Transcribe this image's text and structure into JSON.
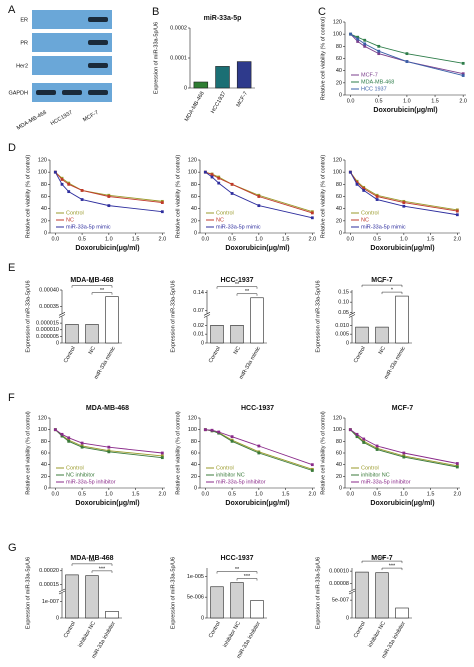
{
  "blot": {
    "panel": "A",
    "rows": [
      "ER",
      "PR",
      "Her2",
      "GAPDH"
    ],
    "lanes": [
      "MDA-MB-468",
      "HCC1937",
      "MCF-7"
    ]
  },
  "chart_data": [
    {
      "panel": "B",
      "type": "bar",
      "title": "miR-33a-5p",
      "ylabel": "Expression of miR-33a-5p/U6",
      "categories": [
        "MDA-MB-468",
        "HCC1937",
        "MCF-7"
      ],
      "values": [
        2e-05,
        7.2e-05,
        8.8e-05
      ],
      "colors": [
        "#2e7d32",
        "#1b6f74",
        "#2e3a8c"
      ],
      "ylim": [
        0,
        0.0002
      ],
      "yticks": [
        0,
        0.0001,
        0.0002
      ]
    },
    {
      "panel": "C",
      "type": "line",
      "xlabel": "Doxorubicin(μg/ml)",
      "ylabel": "Relative cell viability (% of control)",
      "x": [
        0,
        0.125,
        0.25,
        0.5,
        1,
        2
      ],
      "xlim": [
        -0.1,
        2.05
      ],
      "xticks": [
        {
          "value": 0,
          "label": "0.0"
        },
        0.5,
        {
          "value": 1,
          "label": "1.0"
        },
        1.5,
        {
          "value": 2,
          "label": "2.0"
        }
      ],
      "ylim": [
        0,
        120
      ],
      "yticks": [
        0,
        20,
        40,
        60,
        80,
        100,
        120
      ],
      "series": [
        {
          "name": "MCF-7",
          "color": "#7b3f8c",
          "values": [
            100,
            88,
            80,
            68,
            55,
            35
          ]
        },
        {
          "name": "MDA-MB-468",
          "color": "#2e7d4a",
          "values": [
            100,
            95,
            90,
            80,
            68,
            52
          ]
        },
        {
          "name": "HCC 1937",
          "color": "#3a5fa8",
          "values": [
            100,
            92,
            84,
            72,
            55,
            32
          ]
        }
      ]
    },
    {
      "panel": "D",
      "type": "line",
      "xlabel": "Doxorubicin(μg/ml)",
      "ylabel": "Relative cell viability (% of control)",
      "x": [
        0,
        0.125,
        0.25,
        0.5,
        1,
        2
      ],
      "xlim": [
        -0.1,
        2.05
      ],
      "xticks": [
        {
          "value": 0,
          "label": "0.0"
        },
        0.5,
        {
          "value": 1,
          "label": "1.0"
        },
        1.5,
        {
          "value": 2,
          "label": "2.0"
        }
      ],
      "ylim": [
        0,
        120
      ],
      "yticks": [
        0,
        20,
        40,
        60,
        80,
        100,
        120
      ],
      "series": [
        {
          "name": "Control",
          "color": "#9a9a2a",
          "values": [
            100,
            90,
            82,
            70,
            62,
            52
          ]
        },
        {
          "name": "NC",
          "color": "#c0392b",
          "values": [
            100,
            88,
            80,
            70,
            60,
            50
          ]
        },
        {
          "name": "miR-33a-5p mimic",
          "color": "#2e2e9e",
          "values": [
            100,
            80,
            68,
            55,
            45,
            35
          ]
        }
      ]
    },
    {
      "type": "line",
      "xlabel": "Doxorubicin(μg/ml)",
      "ylabel": "Relative cell viability (% of control)",
      "x": [
        0,
        0.125,
        0.25,
        0.5,
        1,
        2
      ],
      "xlim": [
        -0.1,
        2.05
      ],
      "xticks": [
        {
          "value": 0,
          "label": "0.0"
        },
        0.5,
        {
          "value": 1,
          "label": "1.0"
        },
        1.5,
        {
          "value": 2,
          "label": "2.0"
        }
      ],
      "ylim": [
        0,
        120
      ],
      "yticks": [
        0,
        20,
        40,
        60,
        80,
        100,
        120
      ],
      "series": [
        {
          "name": "Control",
          "color": "#9a9a2a",
          "values": [
            100,
            97,
            92,
            80,
            62,
            35
          ]
        },
        {
          "name": "NC",
          "color": "#c0392b",
          "values": [
            100,
            96,
            90,
            80,
            60,
            33
          ]
        },
        {
          "name": "miR-33a-5p mimic",
          "color": "#2e2e9e",
          "values": [
            100,
            92,
            82,
            65,
            45,
            25
          ]
        }
      ]
    },
    {
      "type": "line",
      "xlabel": "Doxorubicin(μg/ml)",
      "ylabel": "Relative cell viability (% of control)",
      "x": [
        0,
        0.125,
        0.25,
        0.5,
        1,
        2
      ],
      "xlim": [
        -0.1,
        2.05
      ],
      "xticks": [
        {
          "value": 0,
          "label": "0.0"
        },
        0.5,
        {
          "value": 1,
          "label": "1.0"
        },
        1.5,
        {
          "value": 2,
          "label": "2.0"
        }
      ],
      "ylim": [
        0,
        120
      ],
      "yticks": [
        0,
        20,
        40,
        60,
        80,
        100,
        120
      ],
      "series": [
        {
          "name": "Control",
          "color": "#9a9a2a",
          "values": [
            100,
            85,
            75,
            62,
            52,
            38
          ]
        },
        {
          "name": "NC",
          "color": "#c0392b",
          "values": [
            100,
            83,
            73,
            60,
            50,
            36
          ]
        },
        {
          "name": "miR-33a-5p mimic",
          "color": "#2e2e9e",
          "values": [
            100,
            80,
            70,
            55,
            44,
            30
          ]
        }
      ]
    },
    {
      "panel": "E",
      "type": "bar",
      "title": "MDA-MB-468",
      "ylabel": "Expression of miR-33a-5p/U6",
      "categories": [
        "Control",
        "NC",
        "miR-33a mimic"
      ],
      "values": [
        1.4e-05,
        1.4e-05,
        0.00038
      ],
      "colors": [
        "#d0d0d0",
        "#d0d0d0",
        "#ffffff"
      ],
      "ylim": [
        0,
        0.0004
      ],
      "ybreak": [
        2e-05,
        0.00033
      ],
      "yticks": [
        0,
        5e-06,
        {
          "value": 1e-05,
          "label": "0.000010"
        },
        1.5e-05,
        0.00035,
        {
          "value": 0.0004,
          "label": "0.00040"
        }
      ],
      "significance": [
        "**",
        "**"
      ]
    },
    {
      "type": "bar",
      "title": "HCC-1937",
      "ylabel": "Expression of miR-33a-5p/U6",
      "categories": [
        "Control",
        "NC",
        "miR-33a mimic"
      ],
      "values": [
        0.02,
        0.02,
        0.12
      ],
      "colors": [
        "#d0d0d0",
        "#d0d0d0",
        "#ffffff"
      ],
      "ylim": [
        0,
        0.15
      ],
      "ybreak": [
        0.03,
        0.06
      ],
      "yticks": [
        0,
        0.01,
        0.02,
        0.07,
        0.14
      ],
      "significance": [
        "**",
        "**"
      ]
    },
    {
      "type": "bar",
      "title": "MCF-7",
      "ylabel": "Expression of miR-33a-5p/U6",
      "categories": [
        "Control",
        "NC",
        "miR-33a mimic"
      ],
      "values": [
        0.009,
        0.009,
        0.13
      ],
      "colors": [
        "#d0d0d0",
        "#d0d0d0",
        "#ffffff"
      ],
      "ylim": [
        0,
        0.16
      ],
      "ybreak": [
        0.015,
        0.045
      ],
      "yticks": [
        0,
        0.005,
        {
          "value": 0.01,
          "label": "0.010"
        },
        0.05,
        {
          "value": 0.1,
          "label": "0.10"
        },
        0.15
      ],
      "significance": [
        "*",
        "*"
      ]
    },
    {
      "panel": "F",
      "type": "line",
      "title": "MDA-MB-468",
      "xlabel": "Doxorubicin(μg/ml)",
      "ylabel": "Relative cell viability (% of control)",
      "x": [
        0,
        0.125,
        0.25,
        0.5,
        1,
        2
      ],
      "xlim": [
        -0.1,
        2.05
      ],
      "xticks": [
        {
          "value": 0,
          "label": "0.0"
        },
        0.5,
        {
          "value": 1,
          "label": "1.0"
        },
        1.5,
        {
          "value": 2,
          "label": "2.0"
        }
      ],
      "ylim": [
        0,
        120
      ],
      "yticks": [
        0,
        20,
        40,
        60,
        80,
        100,
        120
      ],
      "series": [
        {
          "name": "Control",
          "color": "#9a9a2a",
          "values": [
            100,
            90,
            82,
            72,
            64,
            55
          ]
        },
        {
          "name": "NC inhibitor",
          "color": "#3a7a3a",
          "values": [
            100,
            89,
            80,
            70,
            62,
            52
          ]
        },
        {
          "name": "miR-33a-5p inhibitor",
          "color": "#8a2a8a",
          "values": [
            100,
            92,
            86,
            77,
            70,
            60
          ]
        }
      ]
    },
    {
      "type": "line",
      "title": "HCC-1937",
      "xlabel": "Doxorubicin(μg/ml)",
      "ylabel": "Relative cell viability (% of control)",
      "x": [
        0,
        0.125,
        0.25,
        0.5,
        1,
        2
      ],
      "xlim": [
        -0.1,
        2.05
      ],
      "xticks": [
        {
          "value": 0,
          "label": "0.0"
        },
        0.5,
        {
          "value": 1,
          "label": "1.0"
        },
        1.5,
        {
          "value": 2,
          "label": "2.0"
        }
      ],
      "ylim": [
        0,
        120
      ],
      "yticks": [
        0,
        20,
        40,
        60,
        80,
        100,
        120
      ],
      "series": [
        {
          "name": "Control",
          "color": "#9a9a2a",
          "values": [
            100,
            98,
            95,
            82,
            62,
            32
          ]
        },
        {
          "name": "inhibitor NC",
          "color": "#3a7a3a",
          "values": [
            100,
            98,
            94,
            80,
            60,
            30
          ]
        },
        {
          "name": "miR-33a-5p inhibitor",
          "color": "#8a2a8a",
          "values": [
            100,
            99,
            96,
            88,
            72,
            40
          ]
        }
      ]
    },
    {
      "type": "line",
      "title": "MCF-7",
      "xlabel": "Doxorubicin(μg/ml)",
      "ylabel": "Relative cell viability (% of control)",
      "x": [
        0,
        0.125,
        0.25,
        0.5,
        1,
        2
      ],
      "xlim": [
        -0.1,
        2.05
      ],
      "xticks": [
        {
          "value": 0,
          "label": "0.0"
        },
        0.5,
        {
          "value": 1,
          "label": "1.0"
        },
        1.5,
        {
          "value": 2,
          "label": "2.0"
        }
      ],
      "ylim": [
        0,
        120
      ],
      "yticks": [
        0,
        20,
        40,
        60,
        80,
        100,
        120
      ],
      "series": [
        {
          "name": "Control",
          "color": "#9a9a2a",
          "values": [
            100,
            90,
            80,
            68,
            55,
            38
          ]
        },
        {
          "name": "inhibitor NC",
          "color": "#3a7a3a",
          "values": [
            100,
            88,
            78,
            66,
            53,
            36
          ]
        },
        {
          "name": "miR-33a-5p inhibitor",
          "color": "#8a2a8a",
          "values": [
            100,
            92,
            84,
            72,
            60,
            42
          ]
        }
      ]
    },
    {
      "panel": "G",
      "type": "bar",
      "title": "MDA-MB-468",
      "ylabel": "Expression of miR-33a-5p/U6",
      "categories": [
        "Control",
        "inhibitor NC",
        "miR-33a inhibitor"
      ],
      "values": [
        0.000185,
        0.000182,
        4e-08
      ],
      "colors": [
        "#d0d0d0",
        "#d0d0d0",
        "#ffffff"
      ],
      "ylim": [
        0,
        0.00021
      ],
      "ybreak": [
        1.5e-07,
        0.00013
      ],
      "yticks": [
        0,
        {
          "value": 1e-07,
          "label": "1e-007"
        },
        0.00015,
        {
          "value": 0.0002,
          "label": "0.00020"
        }
      ],
      "significance": [
        "***",
        "***"
      ]
    },
    {
      "type": "bar",
      "title": "HCC-1937",
      "ylabel": "Expression of miR-33a-5p/U6",
      "categories": [
        "Control",
        "inhibitor NC",
        "miR-33a inhibitor"
      ],
      "values": [
        7.5e-06,
        8.5e-06,
        4.2e-06
      ],
      "colors": [
        "#d0d0d0",
        "#d0d0d0",
        "#ffffff"
      ],
      "ylim": [
        0,
        1.2e-05
      ],
      "yticks": [
        0,
        {
          "value": 5e-06,
          "label": "5e-006"
        },
        {
          "value": 1e-05,
          "label": "1e-005"
        }
      ],
      "significance": [
        "**",
        "***"
      ]
    },
    {
      "type": "bar",
      "title": "MCF-7",
      "ylabel": "Expression of miR-33a-5p/U6",
      "categories": [
        "Control",
        "inhibitor NC",
        "miR-33a inhibitor"
      ],
      "values": [
        9.85e-05,
        9.75e-05,
        2.8e-07
      ],
      "colors": [
        "#d0d0d0",
        "#d0d0d0",
        "#ffffff"
      ],
      "ylim": [
        0,
        0.000105
      ],
      "ybreak": [
        7e-07,
        7e-05
      ],
      "yticks": [
        0,
        {
          "value": 5e-07,
          "label": "5e-007"
        },
        8e-05,
        {
          "value": 0.0001,
          "label": "0.00010"
        }
      ],
      "significance": [
        "***",
        "***"
      ]
    }
  ]
}
